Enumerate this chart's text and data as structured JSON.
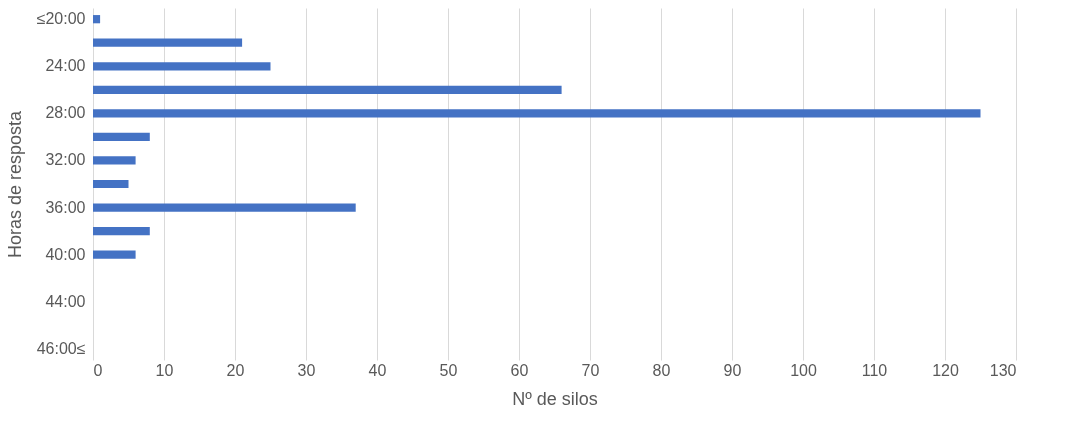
{
  "chart_data": {
    "type": "bar",
    "orientation": "horizontal",
    "categories": [
      "≤20:00",
      null,
      "24:00",
      null,
      "28:00",
      null,
      "32:00",
      null,
      "36:00",
      null,
      "40:00",
      null,
      "44:00",
      null,
      "46:00≤"
    ],
    "values": [
      1,
      21,
      25,
      66,
      125,
      8,
      6,
      5,
      37,
      8,
      6,
      0,
      0,
      0,
      0
    ],
    "color": "#4472c4",
    "xlabel": "Nº de silos",
    "ylabel": "Horas de resposta",
    "xlim": [
      0,
      130
    ],
    "xticks": [
      0,
      10,
      20,
      30,
      40,
      50,
      60,
      70,
      80,
      90,
      100,
      110,
      120,
      130
    ],
    "grid": "x"
  }
}
